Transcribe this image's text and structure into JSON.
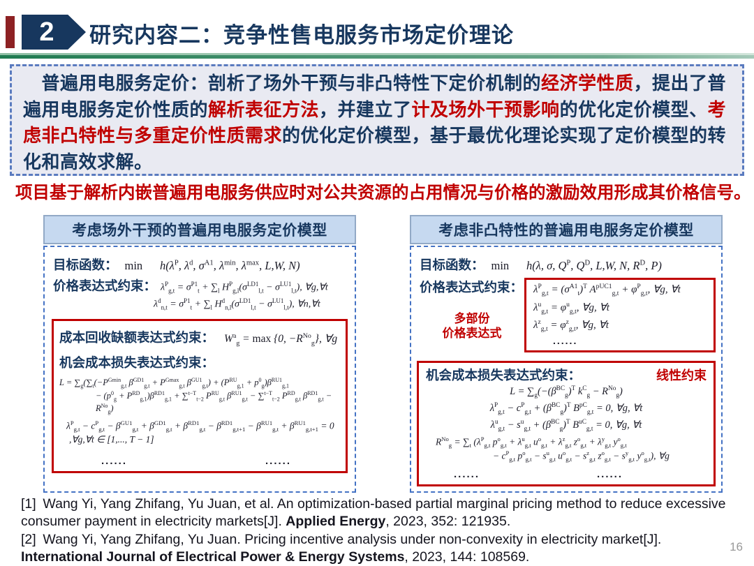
{
  "header": {
    "badge_number": "2",
    "title": "研究内容二：竞争性售电服务市场定价理论"
  },
  "colors": {
    "navy": "#17375E",
    "accent_red": "#C00000",
    "dark_red_bar": "#8d2123",
    "dashed_blue": "#4472C4",
    "panel_header_fill": "#C6D9F0",
    "intro_fill": "#E9EAF2",
    "green_rule": "#1f7a50"
  },
  "intro": {
    "html": "　普遍用电服务定价：剖析了场外干预与非凸特性下定价机制的<r>经济学性质</r>，提出了普遍用电服务定价性质的<r>解析表征方法</r>，并建立了<r>计及场外干预影响</r>的优化定价模型、<r>考虑非凸特性与多重定价性质需求</r>的优化定价模型，基于最优化理论实现了定价模型的转化和高效求解。"
  },
  "statement": "项目基于解析内嵌普遍用电服务供应时对公共资源的占用情况与价格的激励效用形成其价格信号。",
  "left_model": {
    "title": "考虑场外干预的普遍用电服务定价模型",
    "objective_label": "目标函数：",
    "objective_formula": "<span class='rm'>min</span>&ensp;&ensp;&ensp;h(λ<sup>P</sup>, λ<sup>d</sup>, σ<sup>A1</sup>, λ<sup>min</sup>, λ<sup>max</sup>, L,W, N)",
    "price_label": "价格表达式约束：",
    "price_formula_1": "λ<sup>P</sup><sub>g,t</sub> = σ<sup>P1</sup><sub>t</sub> + ∑<sub>l</sub> H<sup>P</sup><sub>g,l</sub>(σ<sup>LD1</sup><sub>l,t</sub> − σ<sup>LU1</sup><sub>l,t</sub>), ∀g,∀t",
    "price_formula_2": "λ<sup>d</sup><sub>n,t</sub> = σ<sup>P1</sup><sub>t</sub> + ∑<sub>l</sub> H<sup>d</sup><sub>n,l</sub>(σ<sup>LD1</sup><sub>l,t</sub> − σ<sup>LU1</sup><sub>l,t</sub>), ∀n,∀t",
    "cost_recovery_label": "成本回收缺额表达式约束：",
    "cost_recovery_formula": "W<sup>a</sup><sub>g</sub> = <span class='rm'>max</span> {0, −R<sup>No</sup><sub>g</sub>}, ∀g",
    "opportunity_label": "机会成本损失表达式约束：",
    "loss_formula_1": "L = ∑<sub>g</sub>(∑<sub>t</sub>(−P<sup>Gmin</sup><sub>g,t</sub> β<sup>GD1</sup><sub>g,t</sub> + P<sup>Gmax</sup><sub>g,t</sub> β<sup>GU1</sup><sub>g,t</sub>) + (P<sup>RU</sup><sub>g,1</sub> + p<sup>0</sup><sub>g</sub>)β<sup>RU1</sup><sub>g,1</sub>",
    "loss_formula_2": "− (p<sup>0</sup><sub>g</sub> + P<sup>RD</sup><sub>g,1</sub>)β<sup>RD1</sup><sub>g,1</sub> + ∑<sup>t−T</sup><sub>t−2</sub> P<sup>RU</sup><sub>g,t</sub> β<sup>RU1</sup><sub>g,t</sub> − ∑<sup>t−T</sup><sub>t−2</sub> P<sup>RD</sup><sub>g,t</sub> β<sup>RD1</sup><sub>g,t</sub> − R<sup>No</sup><sub>g</sub>)",
    "loss_formula_3": "λ<sup>P</sup><sub>g,t</sub> − c<sup>P</sup><sub>g,t</sub> − β<sup>GU1</sup><sub>g,t</sub> + β<sup>GD1</sup><sub>g,t</sub> + β<sup>RD1</sup><sub>g,t</sub> − β<sup>RD1</sup><sub>g,t+1</sub> − β<sup>RU1</sup><sub>g,t</sub> + β<sup>RU1</sup><sub>g,t+1</sub> = 0",
    "loss_formula_4": ",∀g,∀t ∈ [1,..., T − 1]",
    "dots_left": "......",
    "dots_right": "......"
  },
  "right_model": {
    "title": "考虑非凸特性的普遍用电服务定价模型",
    "objective_label": "目标函数：",
    "objective_formula": "<span class='rm'>min</span>&ensp;&ensp;&ensp;h(λ, σ, Q<sup>P</sup>, Q<sup>D</sup>, L,W, N, R<sup>D</sup>, P)",
    "price_label": "价格表达式约束：",
    "multipart_label_line1": "多部份",
    "multipart_label_line2": "价格表达式",
    "price_formula_1": "λ<sup>P</sup><sub>g,t</sub> = (σ<sup>A1</sup><sub>t</sub>)<sup>T</sup> A<sup>pUC1</sup><sub>g,t</sub> + φ<sup>P</sup><sub>g,t</sub>, ∀g, ∀t",
    "price_formula_2": "λ<sup>u</sup><sub>g,t</sub> = φ<sup>u</sup><sub>g,t</sub>, ∀g, ∀t",
    "price_formula_3": "λ<sup>z</sup><sub>g,t</sub> = φ<sup>z</sup><sub>g,t</sub>, ∀g, ∀t",
    "price_dots": "......",
    "opportunity_label": "机会成本损失表达式约束：",
    "linear_tag": "线性约束",
    "loss_formula_1": "L = ∑<sub>g</sub>(−(β<sup>BC</sup><sub>g</sub>)<sup>T</sup> k<sup>C</sup><sub>g</sub> − R<sup>No</sup><sub>g</sub>)",
    "loss_formula_2": "λ<sup>P</sup><sub>g,t</sub> − c<sup>P</sup><sub>g,t</sub> + (β<sup>BC</sup><sub>g</sub>)<sup>T</sup> B<sup>pC</sup><sub>g,t</sub> = 0, ∀g, ∀t",
    "loss_formula_3": "λ<sup>u</sup><sub>g,t</sub> − s<sup>u</sup><sub>g,t</sub> + (β<sup>BC</sup><sub>g</sub>)<sup>T</sup> B<sup>uC</sup><sub>g,t</sub> = 0, ∀g, ∀t",
    "rno_formula_1": "R<sup>No</sup><sub>g</sub> = ∑<sub>t</sub> (λ<sup>P</sup><sub>g,t</sub> p<sup>o</sup><sub>g,t</sub> + λ<sup>u</sup><sub>g,t</sub> u<sup>o</sup><sub>g,t</sub> + λ<sup>z</sup><sub>g,t</sub> z<sup>o</sup><sub>g,t</sub> + λ<sup>y</sup><sub>g,t</sub> y<sup>o</sup><sub>g,t</sub>",
    "rno_formula_2": "− c<sup>P</sup><sub>g,t</sub> p<sup>o</sup><sub>g,t</sub> − s<sup>u</sup><sub>g,t</sub> u<sup>o</sup><sub>g,t</sub> − s<sup>z</sup><sub>g,t</sub> z<sup>o</sup><sub>g,t</sub> − s<sup>y</sup><sub>g,t</sub> y<sup>o</sup><sub>g,t</sub>), ∀g",
    "dots_left": "......",
    "dots_right": "......"
  },
  "references": {
    "ref1": "[1]&ensp;Wang Yi, Yang Zhifang, Yu Juan, et al. An optimization-based partial marginal pricing method to reduce excessive consumer payment in electricity markets[J]. <b>Applied Energy</b>, 2023, 352: 121935.",
    "ref2": "[2]&ensp;Wang Yi, Yang Zhifang, Yu Juan. Pricing incentive analysis under non-convexity in electricity market[J]. <b>International Journal of Electrical Power &amp; Energy Systems</b>, 2023, 144: 108569."
  },
  "page_number": "16"
}
